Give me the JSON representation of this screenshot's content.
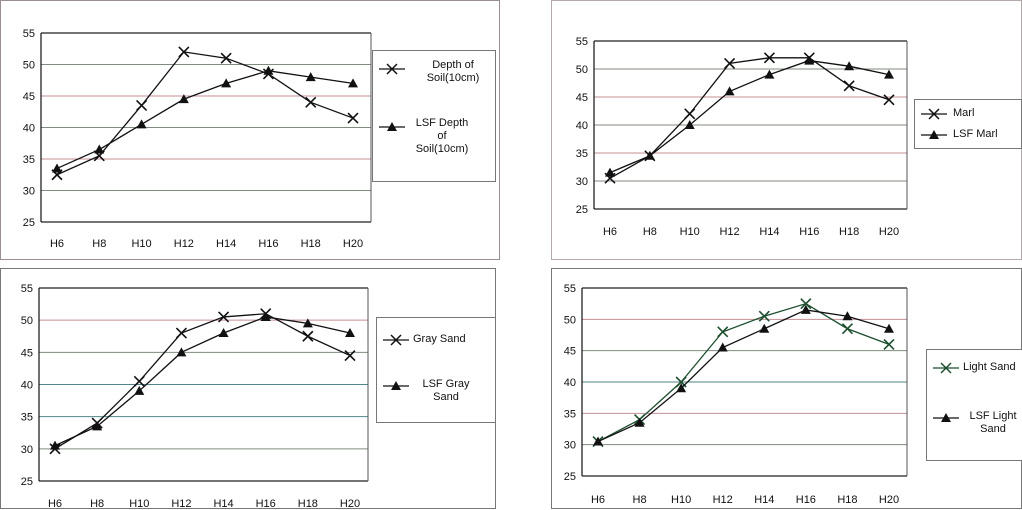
{
  "colors": {
    "series": "#111111",
    "light_sand_series": "#1d4f2f",
    "grid_default": "#7f8c7f",
    "grid_pink": "#c58f95",
    "grid_teal": "#50868a"
  },
  "chart_data": [
    {
      "type": "line",
      "x": [
        "H6",
        "H8",
        "H10",
        "H12",
        "H14",
        "H16",
        "H18",
        "H20"
      ],
      "ylim": [
        25,
        55
      ],
      "yticks": [
        "25",
        "30",
        "35",
        "40",
        "45",
        "50",
        "55"
      ],
      "series": [
        {
          "name": "Depth of Soil(10cm)",
          "marker": "x",
          "values": [
            32.5,
            35.5,
            43.5,
            52,
            51,
            48.5,
            44,
            41.5
          ]
        },
        {
          "name": "LSF Depth of Soil(10cm)",
          "marker": "triangle",
          "values": [
            33.5,
            36.5,
            40.5,
            44.5,
            47,
            49,
            48,
            47
          ]
        }
      ],
      "legend_position": "right"
    },
    {
      "type": "line",
      "x": [
        "H6",
        "H8",
        "H10",
        "H12",
        "H14",
        "H16",
        "H18",
        "H20"
      ],
      "ylim": [
        25,
        55
      ],
      "yticks": [
        "25",
        "30",
        "35",
        "40",
        "45",
        "50",
        "55"
      ],
      "series": [
        {
          "name": "Marl",
          "marker": "x",
          "values": [
            30.5,
            34.5,
            42,
            51,
            52,
            52,
            47,
            44.5
          ]
        },
        {
          "name": "LSF Marl",
          "marker": "triangle",
          "values": [
            31.5,
            34.5,
            40,
            46,
            49,
            51.5,
            50.5,
            49
          ]
        }
      ],
      "legend_position": "right"
    },
    {
      "type": "line",
      "x": [
        "H6",
        "H8",
        "H10",
        "H12",
        "H14",
        "H16",
        "H18",
        "H20"
      ],
      "ylim": [
        25,
        55
      ],
      "yticks": [
        "25",
        "30",
        "35",
        "40",
        "45",
        "50",
        "55"
      ],
      "series": [
        {
          "name": "Gray Sand",
          "marker": "x",
          "values": [
            30,
            34,
            40.5,
            48,
            50.5,
            51,
            47.5,
            44.5
          ]
        },
        {
          "name": "LSF Gray Sand",
          "marker": "triangle",
          "values": [
            30.5,
            33.5,
            39,
            45,
            48,
            50.5,
            49.5,
            48
          ]
        }
      ],
      "legend_position": "right"
    },
    {
      "type": "line",
      "x": [
        "H6",
        "H8",
        "H10",
        "H12",
        "H14",
        "H16",
        "H18",
        "H20"
      ],
      "ylim": [
        25,
        55
      ],
      "yticks": [
        "25",
        "30",
        "35",
        "40",
        "45",
        "50",
        "55"
      ],
      "series": [
        {
          "name": "Light Sand",
          "marker": "x",
          "values": [
            30.5,
            34,
            40,
            48,
            50.5,
            52.5,
            48.5,
            46
          ]
        },
        {
          "name": "LSF Light Sand",
          "marker": "triangle",
          "values": [
            30.5,
            33.5,
            39,
            45.5,
            48.5,
            51.5,
            50.5,
            48.5
          ]
        }
      ],
      "legend_position": "right"
    }
  ],
  "legends": [
    [
      "Depth of\nSoil(10cm)",
      "LSF Depth\nof\nSoil(10cm)"
    ],
    [
      "Marl",
      "LSF Marl"
    ],
    [
      "Gray Sand",
      "LSF Gray\nSand"
    ],
    [
      "Light Sand",
      "LSF Light\nSand"
    ]
  ]
}
